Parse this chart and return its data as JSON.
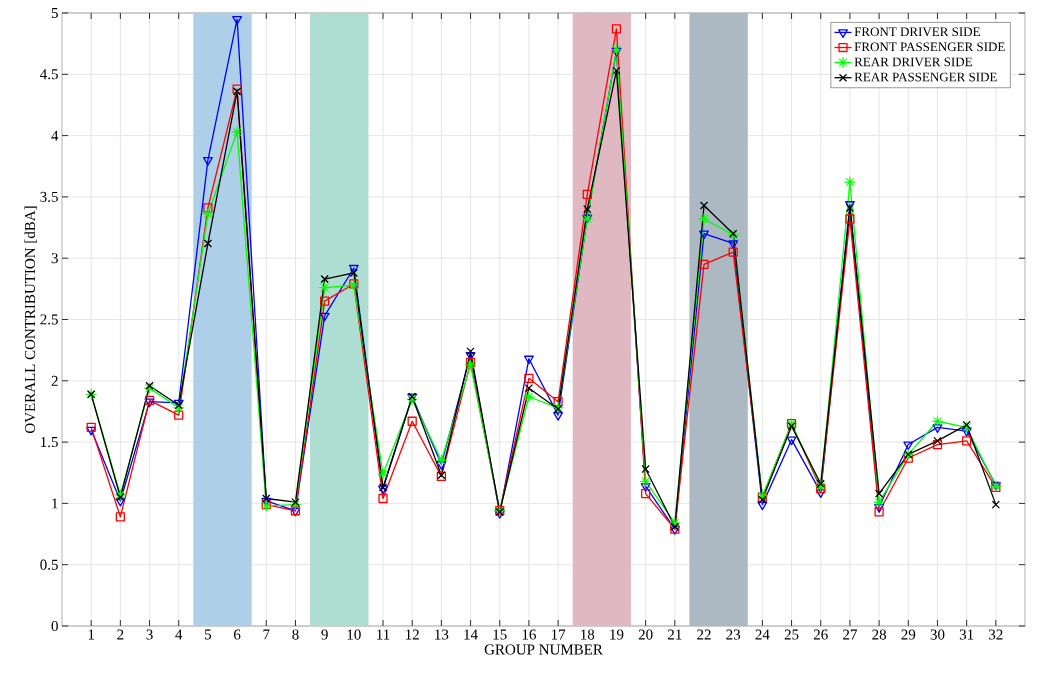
{
  "chart_data": {
    "type": "line",
    "xlabel": "GROUP NUMBER",
    "ylabel": "OVERALL CONTRIBUTION [dBA]",
    "x": [
      1,
      2,
      3,
      4,
      5,
      6,
      7,
      8,
      9,
      10,
      11,
      12,
      13,
      14,
      15,
      16,
      17,
      18,
      19,
      20,
      21,
      22,
      23,
      24,
      25,
      26,
      27,
      28,
      29,
      30,
      31,
      32
    ],
    "xlim": [
      0,
      33
    ],
    "xticks": [
      1,
      2,
      3,
      4,
      5,
      6,
      7,
      8,
      9,
      10,
      11,
      12,
      13,
      14,
      15,
      16,
      17,
      18,
      19,
      20,
      21,
      22,
      23,
      24,
      25,
      26,
      27,
      28,
      29,
      30,
      31,
      32
    ],
    "ylim": [
      0,
      5
    ],
    "yticks": [
      0,
      0.5,
      1,
      1.5,
      2,
      2.5,
      3,
      3.5,
      4,
      4.5,
      5
    ],
    "grid": true,
    "legend": "top right",
    "series": [
      {
        "name": "FRONT DRIVER SIDE",
        "color": "#0000ff",
        "marker": "triangle",
        "values": [
          1.6,
          1.02,
          1.83,
          1.82,
          3.8,
          4.95,
          1.02,
          0.94,
          2.53,
          2.92,
          1.12,
          1.87,
          1.32,
          2.21,
          0.92,
          2.18,
          1.72,
          3.33,
          4.69,
          1.14,
          0.79,
          3.2,
          3.12,
          0.99,
          1.52,
          1.09,
          3.44,
          0.97,
          1.48,
          1.62,
          1.59,
          1.15
        ]
      },
      {
        "name": "FRONT PASSENGER SIDE",
        "color": "#ff0000",
        "marker": "square",
        "values": [
          1.62,
          0.89,
          1.84,
          1.72,
          3.41,
          4.38,
          0.99,
          0.94,
          2.65,
          2.79,
          1.04,
          1.67,
          1.22,
          2.15,
          0.94,
          2.02,
          1.83,
          3.52,
          4.87,
          1.08,
          0.79,
          2.95,
          3.05,
          1.05,
          1.65,
          1.12,
          3.32,
          0.93,
          1.37,
          1.48,
          1.51,
          1.13
        ]
      },
      {
        "name": "REAR DRIVER SIDE",
        "color": "#00ff00",
        "marker": "star",
        "values": [
          1.89,
          1.07,
          1.94,
          1.78,
          3.36,
          4.03,
          0.98,
          0.99,
          2.76,
          2.78,
          1.24,
          1.85,
          1.35,
          2.13,
          0.94,
          1.87,
          1.78,
          3.32,
          4.7,
          1.18,
          0.84,
          3.32,
          3.19,
          1.06,
          1.65,
          1.14,
          3.62,
          1.01,
          1.4,
          1.67,
          1.62,
          1.14
        ]
      },
      {
        "name": "REAR PASSENGER SIDE",
        "color": "#000000",
        "marker": "cross",
        "values": [
          1.89,
          1.05,
          1.96,
          1.8,
          3.12,
          4.36,
          1.04,
          1.01,
          2.83,
          2.88,
          1.13,
          1.87,
          1.23,
          2.24,
          0.93,
          1.94,
          1.77,
          3.4,
          4.53,
          1.28,
          0.81,
          3.43,
          3.2,
          1.03,
          1.63,
          1.16,
          3.41,
          1.08,
          1.4,
          1.51,
          1.64,
          0.99
        ]
      }
    ],
    "bands": [
      {
        "axis": "x",
        "from": 4.5,
        "to": 6.5,
        "color": "#aecfe8"
      },
      {
        "axis": "x",
        "from": 8.5,
        "to": 10.5,
        "color": "#aeddd2"
      },
      {
        "axis": "x",
        "from": 17.5,
        "to": 19.5,
        "color": "#e0b8c2"
      },
      {
        "axis": "x",
        "from": 21.5,
        "to": 23.5,
        "color": "#acb8c2"
      }
    ]
  }
}
